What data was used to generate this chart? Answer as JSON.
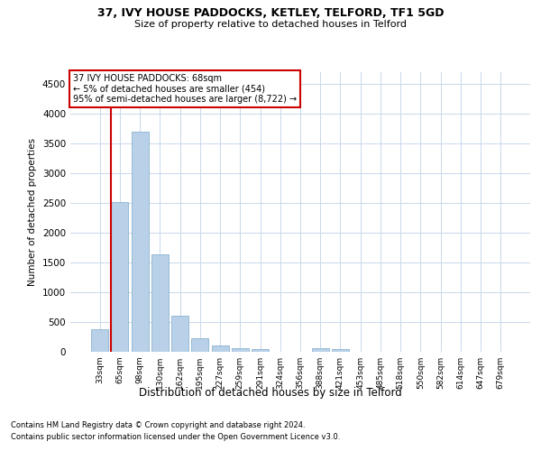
{
  "title1": "37, IVY HOUSE PADDOCKS, KETLEY, TELFORD, TF1 5GD",
  "title2": "Size of property relative to detached houses in Telford",
  "xlabel": "Distribution of detached houses by size in Telford",
  "ylabel": "Number of detached properties",
  "footnote1": "Contains HM Land Registry data © Crown copyright and database right 2024.",
  "footnote2": "Contains public sector information licensed under the Open Government Licence v3.0.",
  "annotation_line1": "37 IVY HOUSE PADDOCKS: 68sqm",
  "annotation_line2": "← 5% of detached houses are smaller (454)",
  "annotation_line3": "95% of semi-detached houses are larger (8,722) →",
  "bar_labels": [
    "33sqm",
    "65sqm",
    "98sqm",
    "130sqm",
    "162sqm",
    "195sqm",
    "227sqm",
    "259sqm",
    "291sqm",
    "324sqm",
    "356sqm",
    "388sqm",
    "421sqm",
    "453sqm",
    "485sqm",
    "518sqm",
    "550sqm",
    "582sqm",
    "614sqm",
    "647sqm",
    "679sqm"
  ],
  "bar_values": [
    380,
    2520,
    3700,
    1640,
    600,
    220,
    105,
    60,
    50,
    0,
    0,
    60,
    50,
    0,
    0,
    0,
    0,
    0,
    0,
    0,
    0
  ],
  "bar_color": "#b8d0e8",
  "bar_edgecolor": "#7aaac8",
  "vline_color": "#cc0000",
  "annotation_box_edgecolor": "#cc0000",
  "annotation_box_facecolor": "#ffffff",
  "ylim": [
    0,
    4700
  ],
  "yticks": [
    0,
    500,
    1000,
    1500,
    2000,
    2500,
    3000,
    3500,
    4000,
    4500
  ],
  "bg_color": "#ffffff",
  "grid_color": "#c8d8ec"
}
